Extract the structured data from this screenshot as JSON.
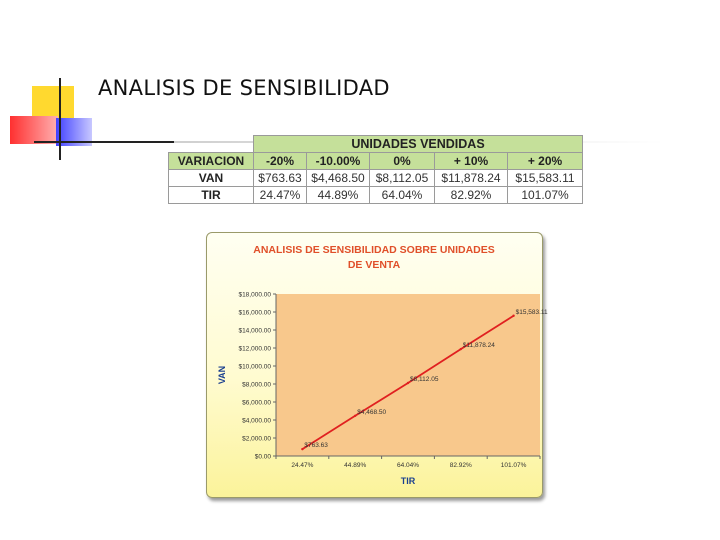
{
  "slide": {
    "title": "ANALISIS DE SENSIBILIDAD"
  },
  "table": {
    "group_header": "UNIDADES VENDIDAS",
    "columns": [
      "VARIACION",
      "-20%",
      "-10.00%",
      "0%",
      "+ 10%",
      "+ 20%"
    ],
    "rows": [
      {
        "label": "VAN",
        "values": [
          "$763.63",
          "$4,468.50",
          "$8,112.05",
          "$11,878.24",
          "$15,583.11"
        ]
      },
      {
        "label": "TIR",
        "values": [
          "24.47%",
          "44.89%",
          "64.04%",
          "82.92%",
          "101.07%"
        ]
      }
    ]
  },
  "chart_data": {
    "type": "line",
    "title": "ANALISIS DE SENSIBILIDAD SOBRE UNIDADES DE VENTA",
    "title_lines": [
      "ANALISIS DE SENSIBILIDAD SOBRE UNIDADES",
      "DE VENTA"
    ],
    "xlabel": "TIR",
    "ylabel": "VAN",
    "x": [
      "24.47%",
      "44.89%",
      "64.04%",
      "82.92%",
      "101.07%"
    ],
    "series": [
      {
        "values": [
          763.63,
          4468.5,
          8112.05,
          11878.24,
          15583.11
        ],
        "labels": [
          "$763.63",
          "$4,468.50",
          "$8,112.05",
          "$11,878.24",
          "$15,583.11"
        ]
      }
    ],
    "ylim": [
      0,
      18000
    ],
    "yticks": [
      0,
      2000,
      4000,
      6000,
      8000,
      10000,
      12000,
      14000,
      16000,
      18000
    ],
    "ytick_labels": [
      "$0.00",
      "$2,000.00",
      "$4,000.00",
      "$6,000.00",
      "$8,000.00",
      "$10,000.00",
      "$12,000.00",
      "$14,000.00",
      "$16,000.00",
      "$18,000.00"
    ],
    "grid": false,
    "legend": "none",
    "colors": {
      "line": "#e02020",
      "plot_bg": "#f8c88c",
      "title": "#e0502a",
      "axis_label": "#1a3f8f"
    }
  }
}
